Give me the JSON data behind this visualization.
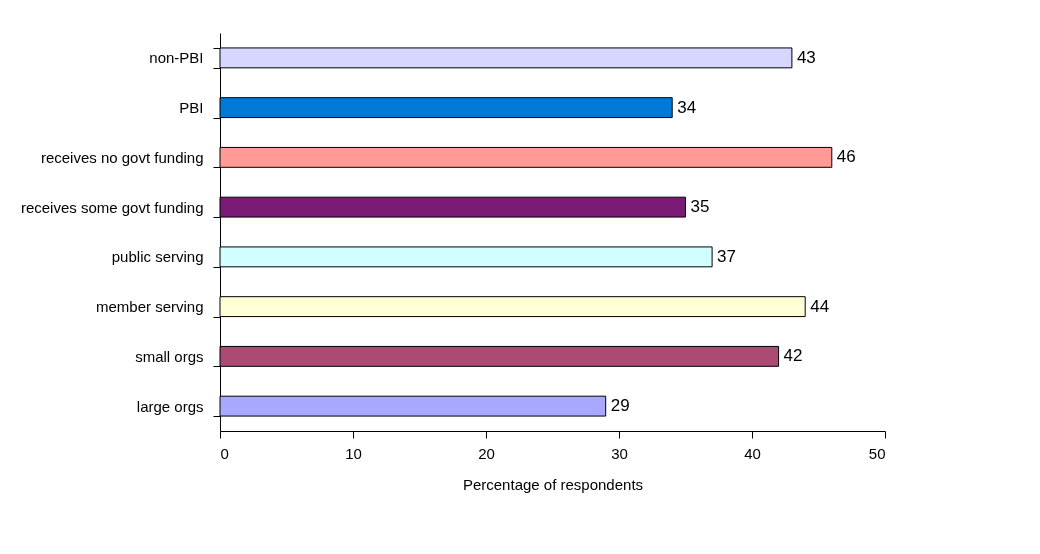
{
  "chart_data": {
    "type": "bar",
    "orientation": "horizontal",
    "xlabel": "Percentage of respondents",
    "categories": [
      "non-PBI",
      "PBI",
      "receives no govt funding",
      "receives some govt funding",
      "public serving",
      "member serving",
      "small orgs",
      "large orgs"
    ],
    "values": [
      43,
      34,
      46,
      35,
      37,
      44,
      42,
      29
    ],
    "colors": [
      "#d6d6ff",
      "#007ad6",
      "#ff9a94",
      "#7b1a75",
      "#d1ffff",
      "#ffffd6",
      "#ab4a73",
      "#a8a8ff"
    ],
    "xlim": [
      0,
      50
    ],
    "xticks": [
      0,
      10,
      20,
      30,
      40,
      50
    ],
    "data_labels": true,
    "grid": false,
    "legend": false
  }
}
